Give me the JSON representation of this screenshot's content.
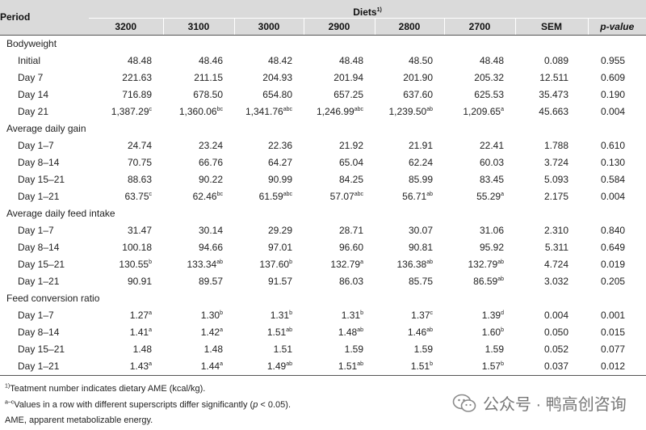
{
  "header": {
    "period_label": "Period",
    "diets_label": "Diets",
    "diets_sup": "1)",
    "columns": [
      "3200",
      "3100",
      "3000",
      "2900",
      "2800",
      "2700",
      "SEM",
      "p-value"
    ]
  },
  "sections": [
    {
      "title": "Bodyweight",
      "rows": [
        {
          "label": "Initial",
          "values": [
            [
              "48.48",
              ""
            ],
            [
              "48.46",
              ""
            ],
            [
              "48.42",
              ""
            ],
            [
              "48.48",
              ""
            ],
            [
              "48.50",
              ""
            ],
            [
              "48.48",
              ""
            ]
          ],
          "sem": "0.089",
          "p": "0.955"
        },
        {
          "label": "Day 7",
          "values": [
            [
              "221.63",
              ""
            ],
            [
              "211.15",
              ""
            ],
            [
              "204.93",
              ""
            ],
            [
              "201.94",
              ""
            ],
            [
              "201.90",
              ""
            ],
            [
              "205.32",
              ""
            ]
          ],
          "sem": "12.511",
          "p": "0.609"
        },
        {
          "label": "Day 14",
          "values": [
            [
              "716.89",
              ""
            ],
            [
              "678.50",
              ""
            ],
            [
              "654.80",
              ""
            ],
            [
              "657.25",
              ""
            ],
            [
              "637.60",
              ""
            ],
            [
              "625.53",
              ""
            ]
          ],
          "sem": "35.473",
          "p": "0.190"
        },
        {
          "label": "Day 21",
          "values": [
            [
              "1,387.29",
              "c"
            ],
            [
              "1,360.06",
              "bc"
            ],
            [
              "1,341.76",
              "abc"
            ],
            [
              "1,246.99",
              "abc"
            ],
            [
              "1,239.50",
              "ab"
            ],
            [
              "1,209.65",
              "a"
            ]
          ],
          "sem": "45.663",
          "p": "0.004"
        }
      ]
    },
    {
      "title": "Average daily gain",
      "rows": [
        {
          "label": "Day 1–7",
          "values": [
            [
              "24.74",
              ""
            ],
            [
              "23.24",
              ""
            ],
            [
              "22.36",
              ""
            ],
            [
              "21.92",
              ""
            ],
            [
              "21.91",
              ""
            ],
            [
              "22.41",
              ""
            ]
          ],
          "sem": "1.788",
          "p": "0.610"
        },
        {
          "label": "Day 8–14",
          "values": [
            [
              "70.75",
              ""
            ],
            [
              "66.76",
              ""
            ],
            [
              "64.27",
              ""
            ],
            [
              "65.04",
              ""
            ],
            [
              "62.24",
              ""
            ],
            [
              "60.03",
              ""
            ]
          ],
          "sem": "3.724",
          "p": "0.130"
        },
        {
          "label": "Day 15–21",
          "values": [
            [
              "88.63",
              ""
            ],
            [
              "90.22",
              ""
            ],
            [
              "90.99",
              ""
            ],
            [
              "84.25",
              ""
            ],
            [
              "85.99",
              ""
            ],
            [
              "83.45",
              ""
            ]
          ],
          "sem": "5.093",
          "p": "0.584"
        },
        {
          "label": "Day 1–21",
          "values": [
            [
              "63.75",
              "c"
            ],
            [
              "62.46",
              "bc"
            ],
            [
              "61.59",
              "abc"
            ],
            [
              "57.07",
              "abc"
            ],
            [
              "56.71",
              "ab"
            ],
            [
              "55.29",
              "a"
            ]
          ],
          "sem": "2.175",
          "p": "0.004"
        }
      ]
    },
    {
      "title": "Average daily feed intake",
      "rows": [
        {
          "label": "Day 1–7",
          "values": [
            [
              "31.47",
              ""
            ],
            [
              "30.14",
              ""
            ],
            [
              "29.29",
              ""
            ],
            [
              "28.71",
              ""
            ],
            [
              "30.07",
              ""
            ],
            [
              "31.06",
              ""
            ]
          ],
          "sem": "2.310",
          "p": "0.840"
        },
        {
          "label": "Day 8–14",
          "values": [
            [
              "100.18",
              ""
            ],
            [
              "94.66",
              ""
            ],
            [
              "97.01",
              ""
            ],
            [
              "96.60",
              ""
            ],
            [
              "90.81",
              ""
            ],
            [
              "95.92",
              ""
            ]
          ],
          "sem": "5.311",
          "p": "0.649"
        },
        {
          "label": "Day 15–21",
          "values": [
            [
              "130.55",
              "b"
            ],
            [
              "133.34",
              "ab"
            ],
            [
              "137.60",
              "b"
            ],
            [
              "132.79",
              "a"
            ],
            [
              "136.38",
              "ab"
            ],
            [
              "132.79",
              "ab"
            ]
          ],
          "sem": "4.724",
          "p": "0.019"
        },
        {
          "label": "Day 1–21",
          "values": [
            [
              "90.91",
              ""
            ],
            [
              "89.57",
              ""
            ],
            [
              "91.57",
              ""
            ],
            [
              "86.03",
              ""
            ],
            [
              "85.75",
              ""
            ],
            [
              "86.59",
              "ab"
            ]
          ],
          "sem": "3.032",
          "p": "0.205"
        }
      ]
    },
    {
      "title": "Feed conversion ratio",
      "rows": [
        {
          "label": "Day 1–7",
          "values": [
            [
              "1.27",
              "a"
            ],
            [
              "1.30",
              "b"
            ],
            [
              "1.31",
              "b"
            ],
            [
              "1.31",
              "b"
            ],
            [
              "1.37",
              "c"
            ],
            [
              "1.39",
              "d"
            ]
          ],
          "sem": "0.004",
          "p": "0.001"
        },
        {
          "label": "Day 8–14",
          "values": [
            [
              "1.41",
              "a"
            ],
            [
              "1.42",
              "a"
            ],
            [
              "1.51",
              "ab"
            ],
            [
              "1.48",
              "ab"
            ],
            [
              "1.46",
              "ab"
            ],
            [
              "1.60",
              "b"
            ]
          ],
          "sem": "0.050",
          "p": "0.015"
        },
        {
          "label": "Day 15–21",
          "values": [
            [
              "1.48",
              ""
            ],
            [
              "1.48",
              ""
            ],
            [
              "1.51",
              ""
            ],
            [
              "1.59",
              ""
            ],
            [
              "1.59",
              ""
            ],
            [
              "1.59",
              ""
            ]
          ],
          "sem": "0.052",
          "p": "0.077"
        },
        {
          "label": "Day 1–21",
          "values": [
            [
              "1.43",
              "a"
            ],
            [
              "1.44",
              "a"
            ],
            [
              "1.49",
              "ab"
            ],
            [
              "1.51",
              "ab"
            ],
            [
              "1.51",
              "b"
            ],
            [
              "1.57",
              "b"
            ]
          ],
          "sem": "0.037",
          "p": "0.012"
        }
      ]
    }
  ],
  "footnotes": {
    "note1_sup": "1)",
    "note1_text": "Teatment number indicates dietary AME (kcal/kg).",
    "note2_sup": "a–c",
    "note2_text_a": "Values in a row with different superscripts differ significantly (",
    "note2_p": "p",
    "note2_text_b": " < 0.05).",
    "note3": "AME, apparent metabolizable energy."
  },
  "watermark": {
    "icon": "wechat-icon",
    "text": "公众号 · 鸭高创咨询"
  }
}
